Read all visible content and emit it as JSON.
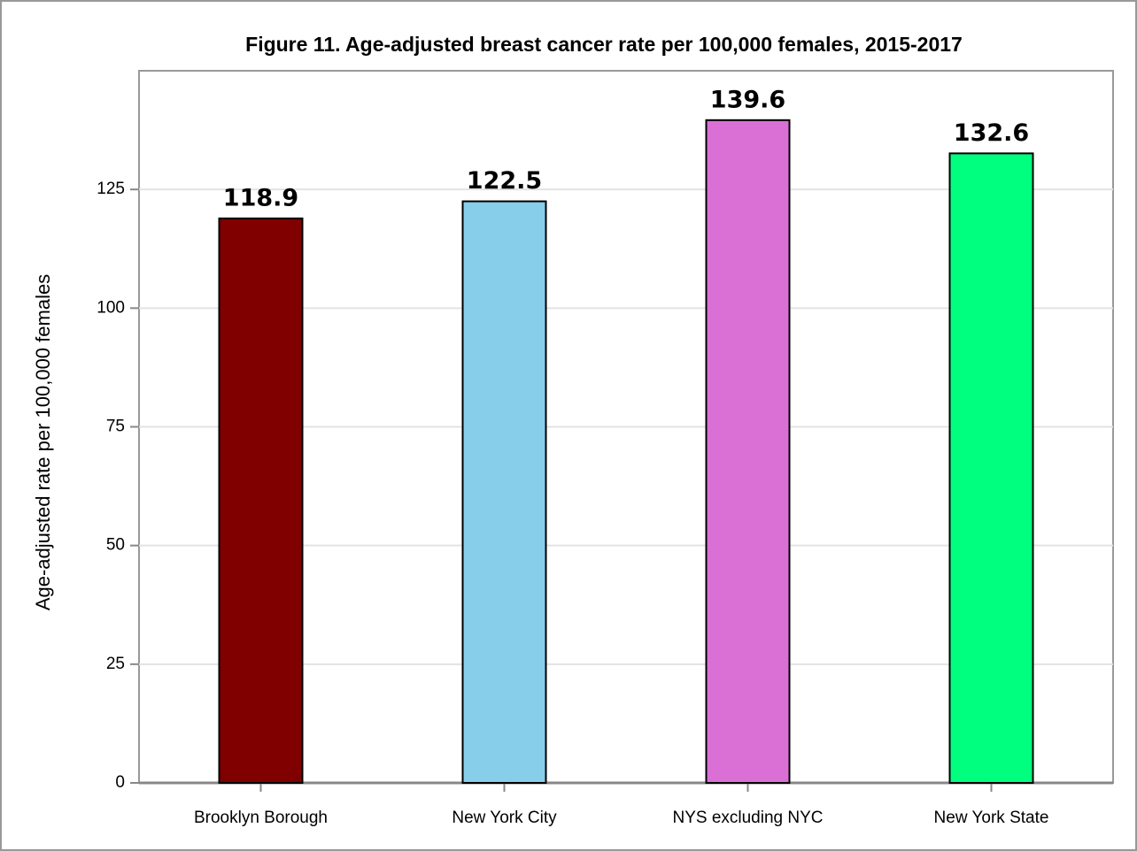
{
  "chart_data": {
    "type": "bar",
    "title": "Figure 11. Age-adjusted breast cancer rate per 100,000 females, 2015-2017",
    "y_label": "Age-adjusted rate per 100,000 females",
    "categories": [
      "Brooklyn Borough",
      "New York City",
      "NYS excluding NYC",
      "New York State"
    ],
    "values": [
      118.9,
      122.5,
      139.6,
      132.6
    ],
    "colors": [
      "#800000",
      "#87ceeb",
      "#da70d6",
      "#00ff7f"
    ],
    "ylim": [
      0,
      150
    ],
    "yticks": [
      0,
      25,
      50,
      75,
      100,
      125
    ],
    "grid": true
  }
}
